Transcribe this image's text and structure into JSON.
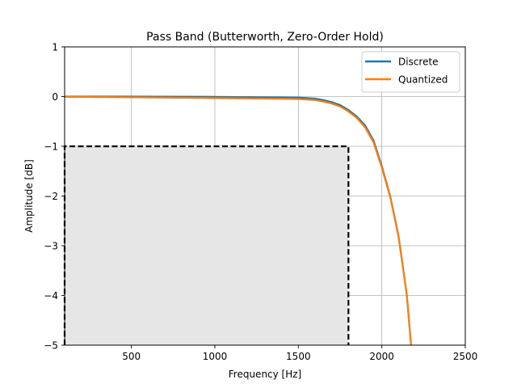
{
  "chart_data": {
    "type": "line",
    "title": "Pass Band (Butterworth, Zero-Order Hold)",
    "xlabel": "Frequency [Hz]",
    "ylabel": "Amplitude [dB]",
    "xlim": [
      100,
      2500
    ],
    "ylim": [
      -5,
      1
    ],
    "xticks": [
      500,
      1000,
      1500,
      2000,
      2500
    ],
    "xtick_labels": [
      "500",
      "1000",
      "1500",
      "2000",
      "2500"
    ],
    "yticks": [
      -5,
      -4,
      -3,
      -2,
      -1,
      0,
      1
    ],
    "ytick_labels": [
      "−5",
      "−4",
      "−3",
      "−2",
      "−1",
      "0",
      "1"
    ],
    "grid": true,
    "legend_position": "top-right",
    "series": [
      {
        "name": "Discrete",
        "color": "#1f77b4",
        "x": [
          100,
          500,
          1000,
          1400,
          1500,
          1600,
          1650,
          1700,
          1750,
          1800,
          1850,
          1900,
          1950,
          2000,
          2050,
          2100,
          2150,
          2175
        ],
        "y": [
          0,
          0,
          -0.005,
          -0.015,
          -0.02,
          -0.04,
          -0.07,
          -0.11,
          -0.17,
          -0.27,
          -0.4,
          -0.58,
          -0.88,
          -1.4,
          -2.0,
          -2.8,
          -4.0,
          -5.0
        ]
      },
      {
        "name": "Quantized",
        "color": "#ff7f0e",
        "x": [
          100,
          500,
          1000,
          1400,
          1500,
          1600,
          1650,
          1700,
          1750,
          1800,
          1850,
          1900,
          1950,
          2000,
          2050,
          2100,
          2150,
          2175
        ],
        "y": [
          -0.005,
          -0.015,
          -0.03,
          -0.045,
          -0.05,
          -0.07,
          -0.1,
          -0.14,
          -0.2,
          -0.3,
          -0.43,
          -0.62,
          -0.92,
          -1.43,
          -2.02,
          -2.82,
          -4.0,
          -5.0
        ]
      }
    ],
    "spec_region": {
      "x": [
        100,
        1800
      ],
      "y": [
        -5,
        -1
      ],
      "fill": "#e6e6e6",
      "border": "#000000",
      "style": "dashed"
    }
  }
}
